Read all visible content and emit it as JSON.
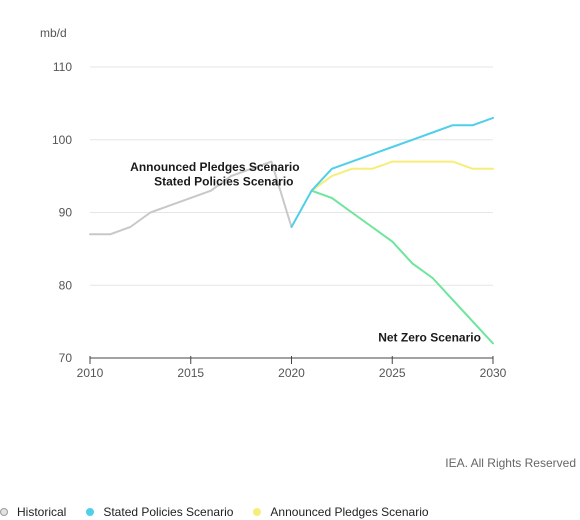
{
  "chart_data": {
    "type": "line",
    "unit_label": "mb/d",
    "ylim": [
      70,
      110
    ],
    "xlim": [
      2010,
      2030
    ],
    "y_ticks": [
      70,
      80,
      90,
      100,
      110
    ],
    "x_ticks": [
      2010,
      2015,
      2020,
      2025,
      2030
    ],
    "grid": true,
    "series": [
      {
        "name": "Historical",
        "color": "#c8c8c8",
        "x": [
          2010,
          2011,
          2012,
          2013,
          2014,
          2015,
          2016,
          2017,
          2018,
          2019,
          2020
        ],
        "values": [
          87,
          87,
          88,
          90,
          91,
          92,
          93,
          95,
          96,
          97,
          88
        ]
      },
      {
        "name": "Stated Policies Scenario",
        "color": "#4fcfe8",
        "x": [
          2020,
          2021,
          2022,
          2023,
          2024,
          2025,
          2026,
          2027,
          2028,
          2029,
          2030
        ],
        "values": [
          88,
          93,
          96,
          97,
          98,
          99,
          100,
          101,
          102,
          102,
          103
        ]
      },
      {
        "name": "Announced Pledges Scenario",
        "color": "#f6ee78",
        "x": [
          2021,
          2022,
          2023,
          2024,
          2025,
          2026,
          2027,
          2028,
          2029,
          2030
        ],
        "values": [
          93,
          95,
          96,
          96,
          97,
          97,
          97,
          97,
          96,
          96
        ]
      },
      {
        "name": "Net Zero Scenario",
        "color": "#6ee59c",
        "x": [
          2021,
          2022,
          2023,
          2024,
          2025,
          2026,
          2027,
          2028,
          2029,
          2030
        ],
        "values": [
          93,
          92,
          90,
          88,
          86,
          83,
          81,
          78,
          75,
          72
        ]
      }
    ],
    "annotations": [
      {
        "text": "Announced Pledges Scenario",
        "x": 2020.4,
        "y": 95.7,
        "anchor": "end"
      },
      {
        "text": "Stated Policies Scenario",
        "x": 2020.1,
        "y": 93.7,
        "anchor": "end"
      },
      {
        "text": "Net Zero Scenario",
        "x": 2029.4,
        "y": 72.3,
        "anchor": "end"
      }
    ],
    "credit": "IEA. All Rights Reserved",
    "legend": [
      "Historical",
      "Stated Policies Scenario",
      "Announced Pledges Scenario"
    ],
    "legend_placement": "bottom"
  }
}
